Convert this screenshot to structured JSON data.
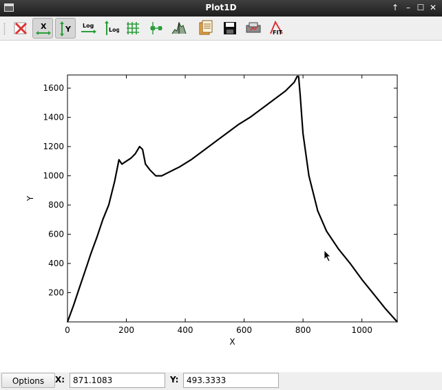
{
  "window": {
    "title": "Plot1D"
  },
  "titlebar_buttons": [
    "up-arrow-icon",
    "minimize-icon",
    "maximize-icon",
    "close-icon"
  ],
  "toolbar": {
    "tools": [
      {
        "name": "reset-zoom-icon",
        "active": false
      },
      {
        "name": "autoscale-x-icon",
        "label": "X",
        "active": true
      },
      {
        "name": "autoscale-y-icon",
        "label": "Y",
        "active": true
      },
      {
        "name": "log-x-icon",
        "label": "Log",
        "active": false
      },
      {
        "name": "log-y-icon",
        "label": "Log",
        "active": false
      },
      {
        "name": "grid-icon",
        "active": false
      },
      {
        "name": "curve-style-icon",
        "active": false
      },
      {
        "name": "histogram-icon",
        "active": false
      },
      {
        "name": "copy-icon",
        "active": false
      },
      {
        "name": "save-icon",
        "active": false
      },
      {
        "name": "print-icon",
        "active": false
      },
      {
        "name": "fit-icon",
        "label": "FIT",
        "active": false
      }
    ]
  },
  "chart_data": {
    "type": "line",
    "title": "",
    "xlabel": "X",
    "ylabel": "Y",
    "xlim": [
      0,
      1120
    ],
    "ylim": [
      0,
      1690
    ],
    "xticks": [
      0,
      200,
      400,
      600,
      800,
      1000
    ],
    "yticks": [
      200,
      400,
      600,
      800,
      1000,
      1200,
      1400,
      1600
    ],
    "grid": false,
    "x": [
      0,
      20,
      40,
      60,
      80,
      100,
      120,
      140,
      160,
      175,
      185,
      200,
      215,
      230,
      245,
      255,
      265,
      280,
      300,
      320,
      340,
      380,
      420,
      460,
      500,
      540,
      580,
      620,
      660,
      700,
      740,
      770,
      780,
      785,
      790,
      800,
      820,
      850,
      880,
      920,
      960,
      1000,
      1040,
      1080,
      1120
    ],
    "values": [
      0,
      110,
      230,
      350,
      470,
      580,
      700,
      800,
      960,
      1110,
      1080,
      1100,
      1120,
      1150,
      1200,
      1180,
      1080,
      1040,
      1000,
      1000,
      1020,
      1060,
      1110,
      1170,
      1230,
      1290,
      1350,
      1400,
      1460,
      1520,
      1580,
      1640,
      1680,
      1680,
      1560,
      1290,
      1000,
      760,
      620,
      500,
      400,
      290,
      190,
      90,
      0
    ]
  },
  "statusbar": {
    "options_label": "Options",
    "x_label": "X:",
    "x_value": "871.1083",
    "y_label": "Y:",
    "y_value": "493.3333"
  }
}
